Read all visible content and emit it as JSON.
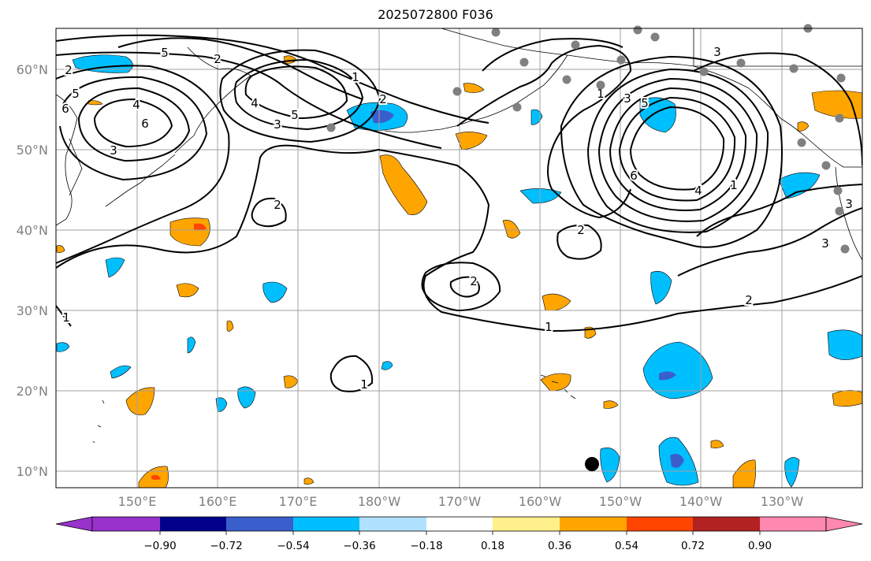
{
  "title": "2025072800 F036",
  "map": {
    "lat_labels": [
      "60°N",
      "50°N",
      "40°N",
      "30°N",
      "20°N",
      "10°N"
    ],
    "lon_labels": [
      "150°E",
      "160°E",
      "170°E",
      "180°W",
      "170°W",
      "160°W",
      "150°W",
      "140°W",
      "130°W"
    ],
    "tick_label_color": "#808080",
    "grid_color": "#a0a0a0",
    "contour_labels": [
      "5",
      "2",
      "5",
      "6",
      "4",
      "6",
      "3",
      "4",
      "3",
      "5",
      "1",
      "2",
      "2",
      "2",
      "2",
      "1",
      "3",
      "5",
      "6",
      "4",
      "1",
      "3",
      "3",
      "3",
      "2",
      "2",
      "1",
      "1",
      "1"
    ],
    "station_marker_color": "#808080",
    "highlight_marker_color": "#000000"
  },
  "colorbar": {
    "tick_labels": [
      "−0.90",
      "−0.72",
      "−0.54",
      "−0.36",
      "−0.18",
      "0.18",
      "0.36",
      "0.54",
      "0.72",
      "0.90"
    ],
    "colors": [
      "#9932cc",
      "#00008b",
      "#3a5fcd",
      "#00bfff",
      "#b0e2ff",
      "#ffffff",
      "#fff08c",
      "#ffa500",
      "#ff4500",
      "#b22222",
      "#ff88b0"
    ]
  }
}
